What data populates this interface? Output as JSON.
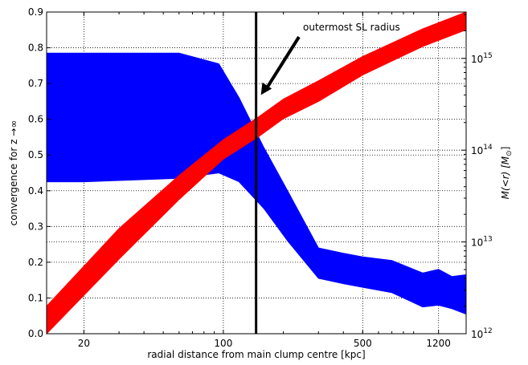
{
  "chart_data": {
    "type": "area",
    "xlabel": "radial distance from main clump centre [kpc]",
    "ylabel_left": "convergence for z",
    "ylabel_left_tail": "→∞",
    "ylabel_right": "M(<r) [M",
    "ylabel_right_sub": "⊙",
    "ylabel_right_tail": "]",
    "x_scale": "log",
    "xlim": [
      13,
      1650
    ],
    "xticks": [
      {
        "value": 20,
        "label": "20"
      },
      {
        "value": 100,
        "label": "100"
      },
      {
        "value": 500,
        "label": "500"
      },
      {
        "value": 1200,
        "label": "1200"
      }
    ],
    "ylim_left": [
      0.0,
      0.9
    ],
    "yticks_left": [
      {
        "value": 0.0,
        "label": "0.0"
      },
      {
        "value": 0.1,
        "label": "0.1"
      },
      {
        "value": 0.2,
        "label": "0.2"
      },
      {
        "value": 0.3,
        "label": "0.3"
      },
      {
        "value": 0.4,
        "label": "0.4"
      },
      {
        "value": 0.5,
        "label": "0.5"
      },
      {
        "value": 0.6,
        "label": "0.6"
      },
      {
        "value": 0.7,
        "label": "0.7"
      },
      {
        "value": 0.8,
        "label": "0.8"
      },
      {
        "value": 0.9,
        "label": "0.9"
      }
    ],
    "y_right_scale": "log",
    "ylim_right": [
      1000000000000.0,
      3200000000000000.0
    ],
    "yticks_right": [
      {
        "value": 1000000000000.0,
        "base": "10",
        "exp": "12"
      },
      {
        "value": 10000000000000.0,
        "base": "10",
        "exp": "13"
      },
      {
        "value": 100000000000000.0,
        "base": "10",
        "exp": "14"
      },
      {
        "value": 1000000000000000.0,
        "base": "10",
        "exp": "15"
      }
    ],
    "grid": true,
    "series": [
      {
        "kind": "band",
        "axis": "left",
        "color": "#0000ff",
        "x": [
          13,
          20,
          60,
          95,
          120,
          160,
          210,
          300,
          400,
          500,
          700,
          1000,
          1200,
          1400,
          1650
        ],
        "upper": [
          0.785,
          0.785,
          0.785,
          0.755,
          0.66,
          0.52,
          0.4,
          0.24,
          0.225,
          0.215,
          0.205,
          0.17,
          0.18,
          0.16,
          0.165
        ],
        "lower": [
          0.425,
          0.425,
          0.435,
          0.45,
          0.425,
          0.35,
          0.26,
          0.155,
          0.14,
          0.13,
          0.115,
          0.075,
          0.08,
          0.07,
          0.055
        ]
      },
      {
        "kind": "band",
        "axis": "right",
        "color": "#ff0000",
        "x": [
          13,
          30,
          60,
          100,
          150,
          200,
          300,
          500,
          1000,
          1650
        ],
        "upper": [
          2000000000000.0,
          14000000000000.0,
          53000000000000.0,
          130000000000000.0,
          230000000000000.0,
          360000000000000.0,
          570000000000000.0,
          1050000000000000.0,
          2100000000000000.0,
          3200000000000000.0
        ],
        "lower": [
          1000000000000.0,
          6500000000000.0,
          29000000000000.0,
          80000000000000.0,
          140000000000000.0,
          220000000000000.0,
          340000000000000.0,
          660000000000000.0,
          1350000000000000.0,
          2050000000000000.0
        ]
      }
    ],
    "vline": {
      "x": 146,
      "color": "#000000"
    },
    "annotation": {
      "text": "outermost SL radius",
      "x": 146,
      "y": 0.65,
      "color": "#000000"
    }
  }
}
